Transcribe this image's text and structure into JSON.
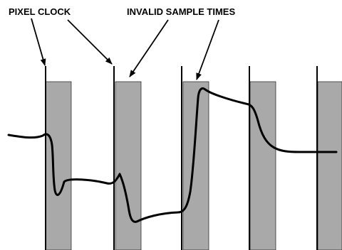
{
  "labels": {
    "pixel_clock": "PIXEL CLOCK",
    "invalid_sample_times": "INVALID SAMPLE TIMES"
  },
  "colors": {
    "background": "#ffffff",
    "invalid_region_fill": "#a9a9a9",
    "invalid_region_stroke": "#000000",
    "clock_line": "#000000",
    "waveform": "#000000",
    "arrow": "#000000",
    "label_text": "#000000"
  },
  "legend": {
    "pixel_clock_edge_count": 5,
    "invalid_sample_window_count": 5
  }
}
